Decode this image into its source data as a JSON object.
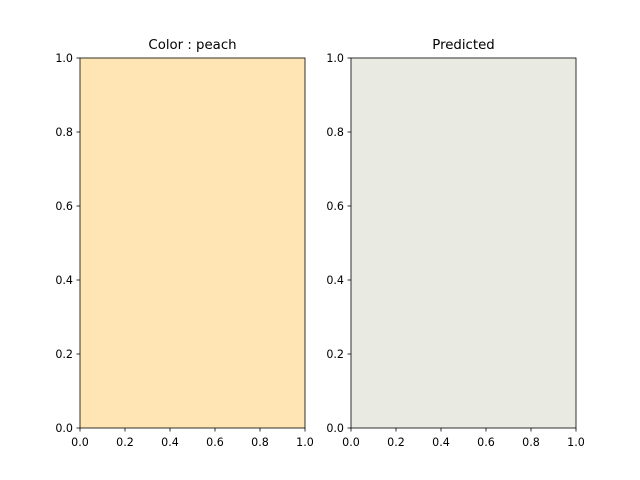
{
  "chart_data": [
    {
      "type": "heatmap",
      "title": "Color : peach",
      "fill_color": "#FFE5B4",
      "xlim": [
        0,
        1
      ],
      "ylim": [
        0,
        1
      ],
      "xticks": [
        "0.0",
        "0.2",
        "0.4",
        "0.6",
        "0.8",
        "1.0"
      ],
      "yticks": [
        "0.0",
        "0.2",
        "0.4",
        "0.6",
        "0.8",
        "1.0"
      ],
      "xlabel": "",
      "ylabel": "",
      "grid": false
    },
    {
      "type": "heatmap",
      "title": "Predicted",
      "fill_color": "#E9EBE2",
      "xlim": [
        0,
        1
      ],
      "ylim": [
        0,
        1
      ],
      "xticks": [
        "0.0",
        "0.2",
        "0.4",
        "0.6",
        "0.8",
        "1.0"
      ],
      "yticks": [
        "0.0",
        "0.2",
        "0.4",
        "0.6",
        "0.8",
        "1.0"
      ],
      "xlabel": "",
      "ylabel": "",
      "grid": false
    }
  ]
}
